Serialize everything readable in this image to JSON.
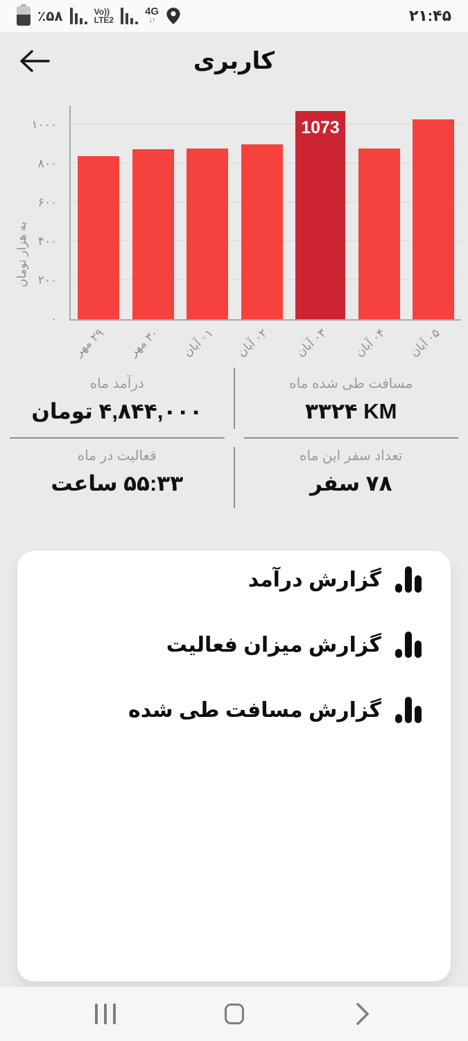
{
  "status_bar": {
    "time": "۲۱:۴۵",
    "battery_percent": "٪۵۸",
    "volte_line1": "Vo))",
    "volte_line2": "LTE2",
    "network": "4G",
    "network_arrows": "↓↑"
  },
  "header": {
    "title": "کاربری"
  },
  "chart_data": {
    "type": "bar",
    "categories": [
      "۲۹ مهر",
      "۳۰ مهر",
      "۰۱ آبان",
      "۰۲ آبان",
      "۰۳ آبان",
      "۰۴ آبان",
      "۰۵ آبان"
    ],
    "values": [
      840,
      875,
      880,
      900,
      1073,
      880,
      1030
    ],
    "highlighted_index": 4,
    "highlighted_label": "1073",
    "title": "",
    "xlabel": "",
    "ylabel": "به هزار تومان",
    "yticks": [
      0,
      200,
      400,
      600,
      800,
      1000
    ],
    "ytick_labels": [
      "۰",
      "۲۰۰",
      "۴۰۰",
      "۶۰۰",
      "۸۰۰",
      "۱۰۰۰"
    ],
    "ylim": [
      0,
      1100
    ],
    "grid": true,
    "legend": "none",
    "bar_color": "#f5423e",
    "highlight_color": "#cc2431"
  },
  "stats": {
    "cells": [
      {
        "label": "درآمد ماه",
        "value": "۴,۸۴۴,۰۰۰ تومان",
        "dir": "rtl"
      },
      {
        "label": "مسافت طی شده ماه",
        "value": "۳۳۲۴ KM",
        "dir": "ltr"
      },
      {
        "label": "فعالیت در ماه",
        "value": "۵۵:۳۳ ساعت",
        "dir": "rtl"
      },
      {
        "label": "تعداد سفر این ماه",
        "value": "۷۸ سفر",
        "dir": "rtl"
      }
    ]
  },
  "reports": {
    "items": [
      {
        "label": "گزارش درآمد"
      },
      {
        "label": "گزارش میزان فعالیت"
      },
      {
        "label": "گزارش مسافت طی شده"
      }
    ]
  },
  "icons": {
    "report_item_icon": "bar-chart-icon",
    "nav_left": "recents-icon",
    "nav_center": "home-icon",
    "nav_right": "back-chevron-icon",
    "status": [
      "battery-icon",
      "signal-bars-icon",
      "volte-badge",
      "signal-bars-icon",
      "4g-badge",
      "location-pin-icon"
    ]
  },
  "colors": {
    "page_background": "#eaeaea",
    "card_background": "#ffffff",
    "bar": "#f5423e",
    "bar_highlight": "#cc2431",
    "muted_text": "#9b9b9b",
    "text": "#111111"
  }
}
